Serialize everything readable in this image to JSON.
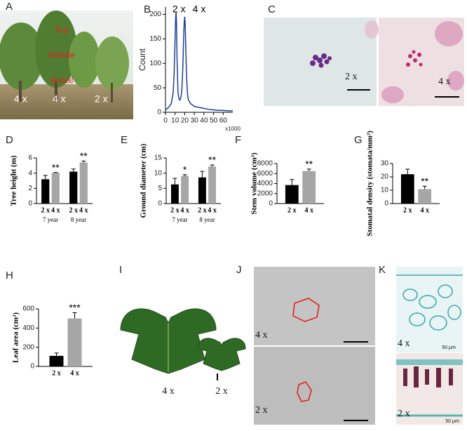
{
  "panel_labels": [
    "A",
    "B",
    "C",
    "D",
    "E",
    "F",
    "G",
    "H",
    "I",
    "J",
    "K"
  ],
  "photo_a": {
    "positions": [
      "Top",
      "Middle",
      "Basal"
    ],
    "ploidy": [
      "4 x",
      "4 x",
      "2 x"
    ]
  },
  "photo_c": [
    "2 x",
    "4 x"
  ],
  "photo_i": [
    "4 x",
    "2 x"
  ],
  "photo_j": [
    "4 x",
    "2 x"
  ],
  "photo_k": {
    "ploidy": [
      "4 x",
      "2 x"
    ],
    "scale": [
      "50 μm",
      "50 μm"
    ]
  },
  "chart_data": [
    {
      "type": "line",
      "ylabel": "Count",
      "xlabel": "x1000",
      "annotations": [
        "2 x",
        "4 x"
      ],
      "x": [
        0,
        2,
        4,
        6,
        8,
        9,
        10,
        10.5,
        11,
        11.5,
        12,
        13,
        14,
        15,
        16,
        17,
        18,
        19,
        19.5,
        20,
        20.5,
        21,
        22,
        23,
        24,
        26,
        28,
        30,
        35,
        40,
        45,
        50,
        55,
        60,
        65,
        70
      ],
      "values": [
        5,
        8,
        12,
        18,
        40,
        80,
        150,
        190,
        205,
        180,
        110,
        40,
        28,
        25,
        30,
        45,
        90,
        160,
        185,
        195,
        180,
        140,
        70,
        35,
        25,
        18,
        15,
        12,
        10,
        8,
        6,
        5,
        4,
        4,
        3,
        3
      ],
      "color": "#1f3f99",
      "xlim": [
        0,
        70
      ],
      "xticks": [
        0,
        10,
        20,
        30,
        40,
        50,
        60
      ],
      "ylim": [
        0,
        215
      ],
      "yticks": [
        0,
        50,
        100,
        150,
        200
      ]
    },
    {
      "type": "bar",
      "ylabel": "Tree height (m)",
      "categories": [
        "7 year",
        "8 year"
      ],
      "ylim": [
        0,
        6
      ],
      "yticks": [
        0,
        2,
        4,
        6
      ],
      "series": [
        {
          "name": "2 x",
          "color": "#000000",
          "values": [
            3.2,
            4.2
          ],
          "errors": [
            0.5,
            0.35
          ]
        },
        {
          "name": "4 x",
          "color": "#a6a6a6",
          "values": [
            4.05,
            5.4
          ],
          "errors": [
            0.05,
            0.2
          ],
          "significance": [
            "**",
            "**"
          ]
        }
      ]
    },
    {
      "type": "bar",
      "ylabel": "Ground diameter (cm)",
      "categories": [
        "7 year",
        "8 year"
      ],
      "ylim": [
        0,
        15
      ],
      "yticks": [
        0,
        5,
        10,
        15
      ],
      "series": [
        {
          "name": "2 x",
          "color": "#000000",
          "values": [
            6.3,
            8.6
          ],
          "errors": [
            2,
            2
          ]
        },
        {
          "name": "4 x",
          "color": "#a6a6a6",
          "values": [
            9.1,
            12.2
          ],
          "errors": [
            0.4,
            0.5
          ],
          "significance": [
            "*",
            "**"
          ]
        }
      ]
    },
    {
      "type": "bar",
      "ylabel": "Stem volume (cm³)",
      "ylim": [
        0,
        8000
      ],
      "yticks": [
        0,
        2000,
        4000,
        6000,
        8000
      ],
      "series": [
        {
          "name": "2 x",
          "color": "#000000",
          "values": [
            3700
          ],
          "errors": [
            1100
          ]
        },
        {
          "name": "4 x",
          "color": "#a6a6a6",
          "values": [
            6500
          ],
          "errors": [
            400
          ],
          "significance": [
            "**"
          ]
        }
      ]
    },
    {
      "type": "bar",
      "ylabel": "Stomatal density (stomata/mm²)",
      "ylim": [
        0,
        30
      ],
      "yticks": [
        0,
        10,
        20,
        30
      ],
      "series": [
        {
          "name": "2 x",
          "color": "#000000",
          "values": [
            22
          ],
          "errors": [
            3.8
          ]
        },
        {
          "name": "4 x",
          "color": "#a6a6a6",
          "values": [
            10.8
          ],
          "errors": [
            2.2
          ],
          "significance": [
            "**"
          ]
        }
      ]
    },
    {
      "type": "bar",
      "ylabel": "Leaf area (cm²)",
      "ylim": [
        0,
        600
      ],
      "yticks": [
        0,
        200,
        400,
        600
      ],
      "series": [
        {
          "name": "2 x",
          "color": "#000000",
          "values": [
            110
          ],
          "errors": [
            30
          ]
        },
        {
          "name": "4 x",
          "color": "#a6a6a6",
          "values": [
            500
          ],
          "errors": [
            60
          ],
          "significance": [
            "***"
          ]
        }
      ]
    }
  ]
}
